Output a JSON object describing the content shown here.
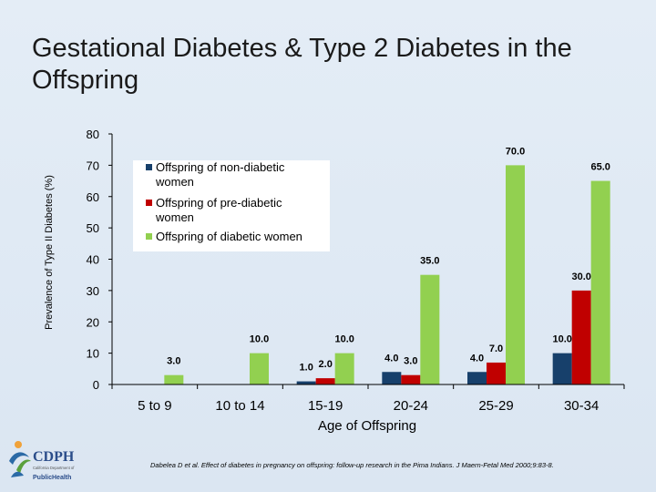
{
  "title": "Gestational Diabetes & Type 2 Diabetes in the Offspring",
  "citation": "Dabelea D et al. Effect of diabetes in pregnancy on offspring: follow-up research in the Pima Indians. J Maern-Fetal Med 2000;9:83-8.",
  "logo": {
    "name": "CDPH",
    "subtitle": "California Department of",
    "tagline": "PublicHealth"
  },
  "colors": {
    "non_diabetic": "#17406b",
    "pre_diabetic": "#c00000",
    "diabetic": "#92d050"
  },
  "chart_data": {
    "type": "bar",
    "xlabel": "Age of Offspring",
    "ylabel": "Prevalence of Type II Diabetes (%)",
    "ylim": [
      0,
      80
    ],
    "yticks": [
      0,
      10,
      20,
      30,
      40,
      50,
      60,
      70,
      80
    ],
    "categories": [
      "5 to 9",
      "10 to 14",
      "15-19",
      "20-24",
      "25-29",
      "30-34"
    ],
    "legend_position": "top-left",
    "series": [
      {
        "name": "Offspring of non-diabetic women",
        "color": "#17406b",
        "values": [
          null,
          null,
          1.0,
          4.0,
          4.0,
          10.0
        ],
        "labels": [
          "",
          "",
          "1.0",
          "4.0",
          "4.0",
          "10.0"
        ]
      },
      {
        "name": "Offspring of pre-diabetic women",
        "color": "#c00000",
        "values": [
          null,
          null,
          2.0,
          3.0,
          7.0,
          30.0
        ],
        "labels": [
          "",
          "",
          "2.0",
          "3.0",
          "7.0",
          "30.0"
        ]
      },
      {
        "name": "Offspring of diabetic women",
        "color": "#92d050",
        "values": [
          3.0,
          10.0,
          10.0,
          35.0,
          70.0,
          65.0
        ],
        "labels": [
          "3.0",
          "10.0",
          "10.0",
          "35.0",
          "70.0",
          "65.0"
        ]
      }
    ]
  }
}
